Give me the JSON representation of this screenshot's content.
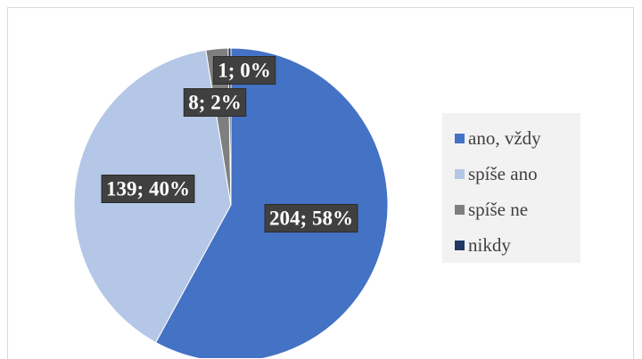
{
  "chart_data": {
    "type": "pie",
    "title": "",
    "slices": [
      {
        "name": "ano, vždy",
        "value": 204,
        "percent": "58%",
        "label": "204; 58%",
        "color": "#4472c4"
      },
      {
        "name": "spíše ano",
        "value": 139,
        "percent": "40%",
        "label": "139; 40%",
        "color": "#b4c7e7"
      },
      {
        "name": "spíše ne",
        "value": 8,
        "percent": "2%",
        "label": "8; 2%",
        "color": "#7f7f7f"
      },
      {
        "name": "nikdy",
        "value": 1,
        "percent": "0%",
        "label": "1; 0%",
        "color": "#203864"
      }
    ],
    "legend_position": "right"
  }
}
